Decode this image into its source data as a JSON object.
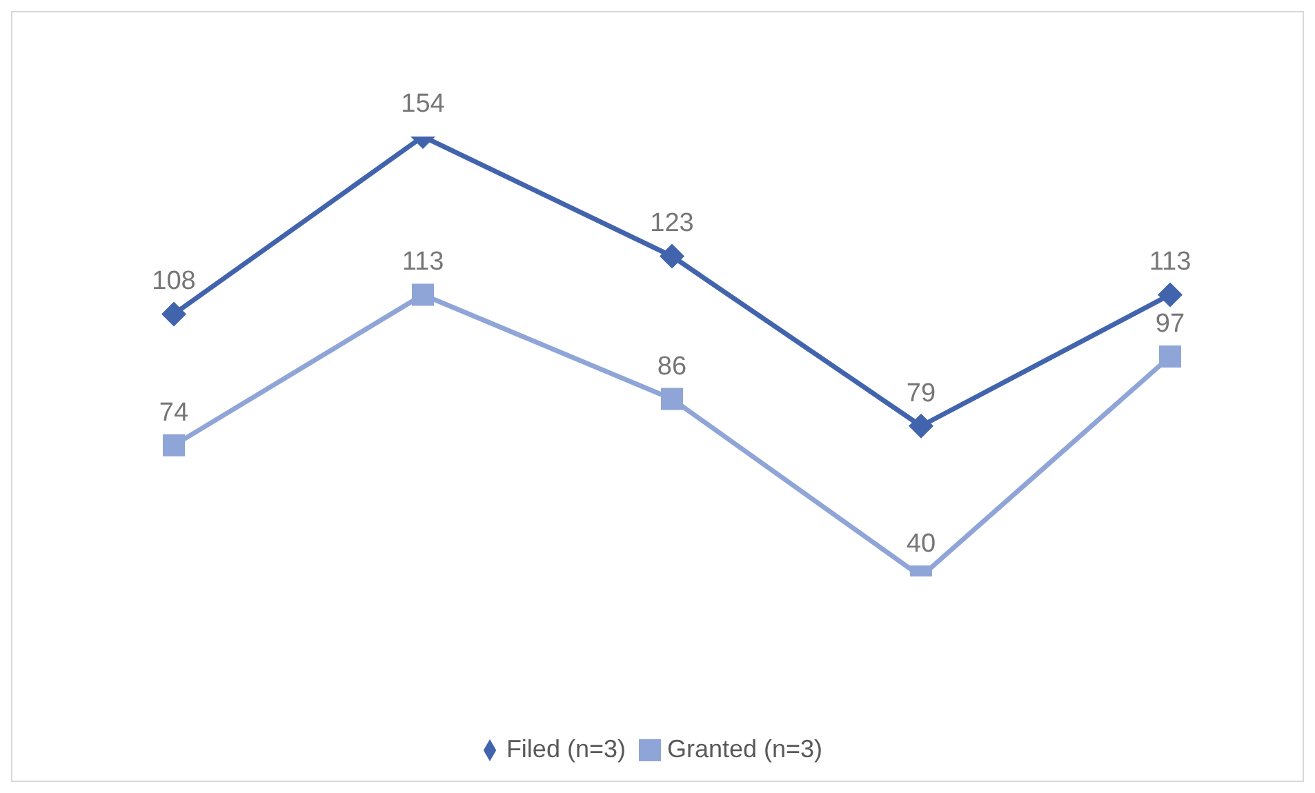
{
  "chart_data": {
    "type": "line",
    "categories": [
      null,
      null,
      null,
      null,
      null
    ],
    "series": [
      {
        "name": "Filed (n=3)",
        "color": "#4264ad",
        "marker": "diamond",
        "values": [
          108,
          154,
          123,
          79,
          113
        ]
      },
      {
        "name": "Granted (n=3)",
        "color": "#8fa5d7",
        "marker": "square",
        "values": [
          74,
          113,
          86,
          40,
          97
        ]
      }
    ],
    "tick_labels": false,
    "data_labels": true,
    "legend": "bottom",
    "line_style": "solid"
  }
}
